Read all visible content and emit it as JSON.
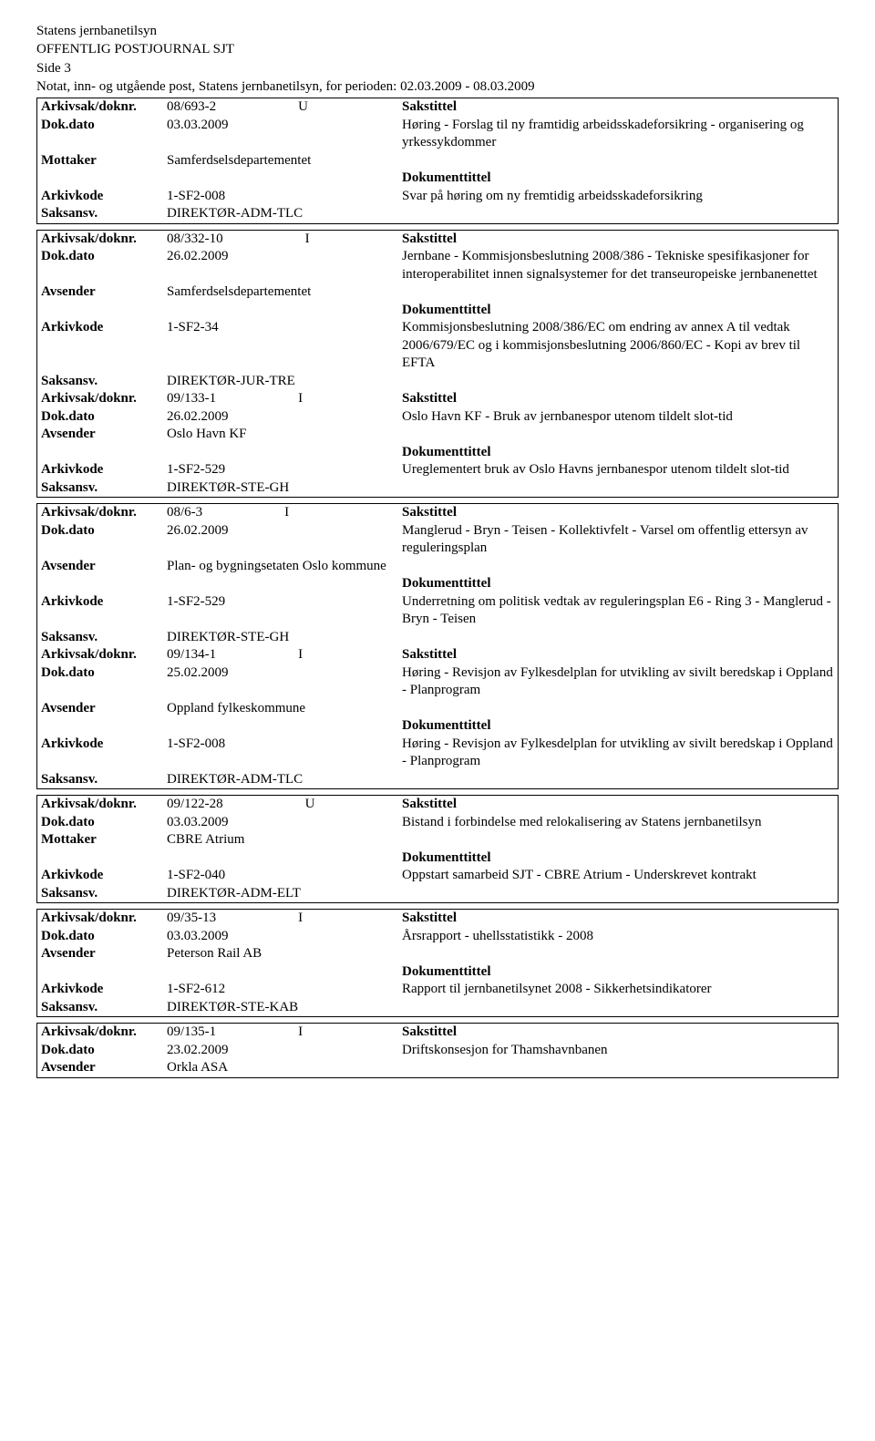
{
  "header": {
    "org": "Statens jernbanetilsyn",
    "title": "OFFENTLIG POSTJOURNAL SJT",
    "page": "Side 3",
    "note": "Notat, inn- og utgående post, Statens jernbanetilsyn, for perioden: 02.03.2009 - 08.03.2009"
  },
  "labels": {
    "arkiv": "Arkivsak/doknr.",
    "dokdato": "Dok.dato",
    "mottaker": "Mottaker",
    "avsender": "Avsender",
    "arkivkode": "Arkivkode",
    "saksansv": "Saksansv.",
    "sakstittel": "Sakstittel",
    "dokumenttittel": "Dokumenttittel"
  },
  "entries": [
    {
      "arkiv": "08/693-2",
      "io": "U",
      "dokdato": "03.03.2009",
      "party_label": "Mottaker",
      "party": "Samferdselsdepartementet",
      "arkivkode": "1-SF2-008",
      "saksansv": "DIREKTØR-ADM-TLC",
      "sakstittel_body": "Høring - Forslag til ny framtidig arbeidsskadeforsikring - organisering og yrkessykdommer",
      "doktittel_body": "Svar på høring om ny fremtidig arbeidsskadeforsikring"
    },
    {
      "arkiv": "08/332-10",
      "io": "I",
      "dokdato": "26.02.2009",
      "party_label": "Avsender",
      "party": "Samferdselsdepartementet",
      "arkivkode": "1-SF2-34",
      "saksansv": "DIREKTØR-JUR-TRE",
      "sakstittel_body": "Jernbane - Kommisjonsbeslutning 2008/386 - Tekniske spesifikasjoner for interoperabilitet innen signalsystemer for det transeuropeiske jernbanenettet",
      "doktittel_body": "Kommisjonsbeslutning 2008/386/EC om endring av annex A til vedtak 2006/679/EC og i kommisjonsbeslutning 2006/860/EC - Kopi av brev til EFTA"
    },
    {
      "arkiv": "09/133-1",
      "io": "I",
      "dokdato": "26.02.2009",
      "party_label": "Avsender",
      "party": "Oslo Havn KF",
      "arkivkode": "1-SF2-529",
      "saksansv": "DIREKTØR-STE-GH",
      "sakstittel_body": "Oslo Havn KF - Bruk av jernbanespor utenom tildelt slot-tid",
      "doktittel_body": "Ureglementert bruk av Oslo Havns jernbanespor utenom tildelt slot-tid"
    },
    {
      "arkiv": "08/6-3",
      "io": "I",
      "dokdato": "26.02.2009",
      "party_label": "Avsender",
      "party": "Plan- og bygningsetaten Oslo kommune",
      "arkivkode": "1-SF2-529",
      "saksansv": "DIREKTØR-STE-GH",
      "sakstittel_body": "Manglerud - Bryn - Teisen - Kollektivfelt - Varsel om offentlig ettersyn av reguleringsplan",
      "doktittel_body": "Underretning om politisk vedtak av reguleringsplan E6 - Ring 3 - Manglerud - Bryn - Teisen"
    },
    {
      "arkiv": "09/134-1",
      "io": "I",
      "dokdato": "25.02.2009",
      "party_label": "Avsender",
      "party": "Oppland fylkeskommune",
      "arkivkode": "1-SF2-008",
      "saksansv": "DIREKTØR-ADM-TLC",
      "sakstittel_body": "Høring - Revisjon av Fylkesdelplan for utvikling av sivilt beredskap i Oppland - Planprogram",
      "doktittel_body": "Høring - Revisjon av Fylkesdelplan for utvikling av sivilt beredskap i Oppland - Planprogram"
    },
    {
      "arkiv": "09/122-28",
      "io": "U",
      "dokdato": "03.03.2009",
      "party_label": "Mottaker",
      "party": "CBRE Atrium",
      "arkivkode": "1-SF2-040",
      "saksansv": "DIREKTØR-ADM-ELT",
      "sakstittel_body": "Bistand i forbindelse med relokalisering av Statens jernbanetilsyn",
      "doktittel_body": "Oppstart samarbeid SJT - CBRE Atrium - Underskrevet kontrakt"
    },
    {
      "arkiv": "09/35-13",
      "io": "I",
      "dokdato": "03.03.2009",
      "party_label": "Avsender",
      "party": "Peterson Rail AB",
      "arkivkode": "1-SF2-612",
      "saksansv": "DIREKTØR-STE-KAB",
      "sakstittel_body": "Årsrapport - uhellsstatistikk - 2008",
      "doktittel_body": "Rapport til jernbanetilsynet 2008 - Sikkerhetsindikatorer"
    },
    {
      "arkiv": "09/135-1",
      "io": "I",
      "dokdato": "23.02.2009",
      "party_label": "Avsender",
      "party": "Orkla ASA",
      "arkivkode": "",
      "saksansv": "",
      "sakstittel_body": "Driftskonsesjon for Thamshavnbanen",
      "doktittel_body": ""
    }
  ]
}
